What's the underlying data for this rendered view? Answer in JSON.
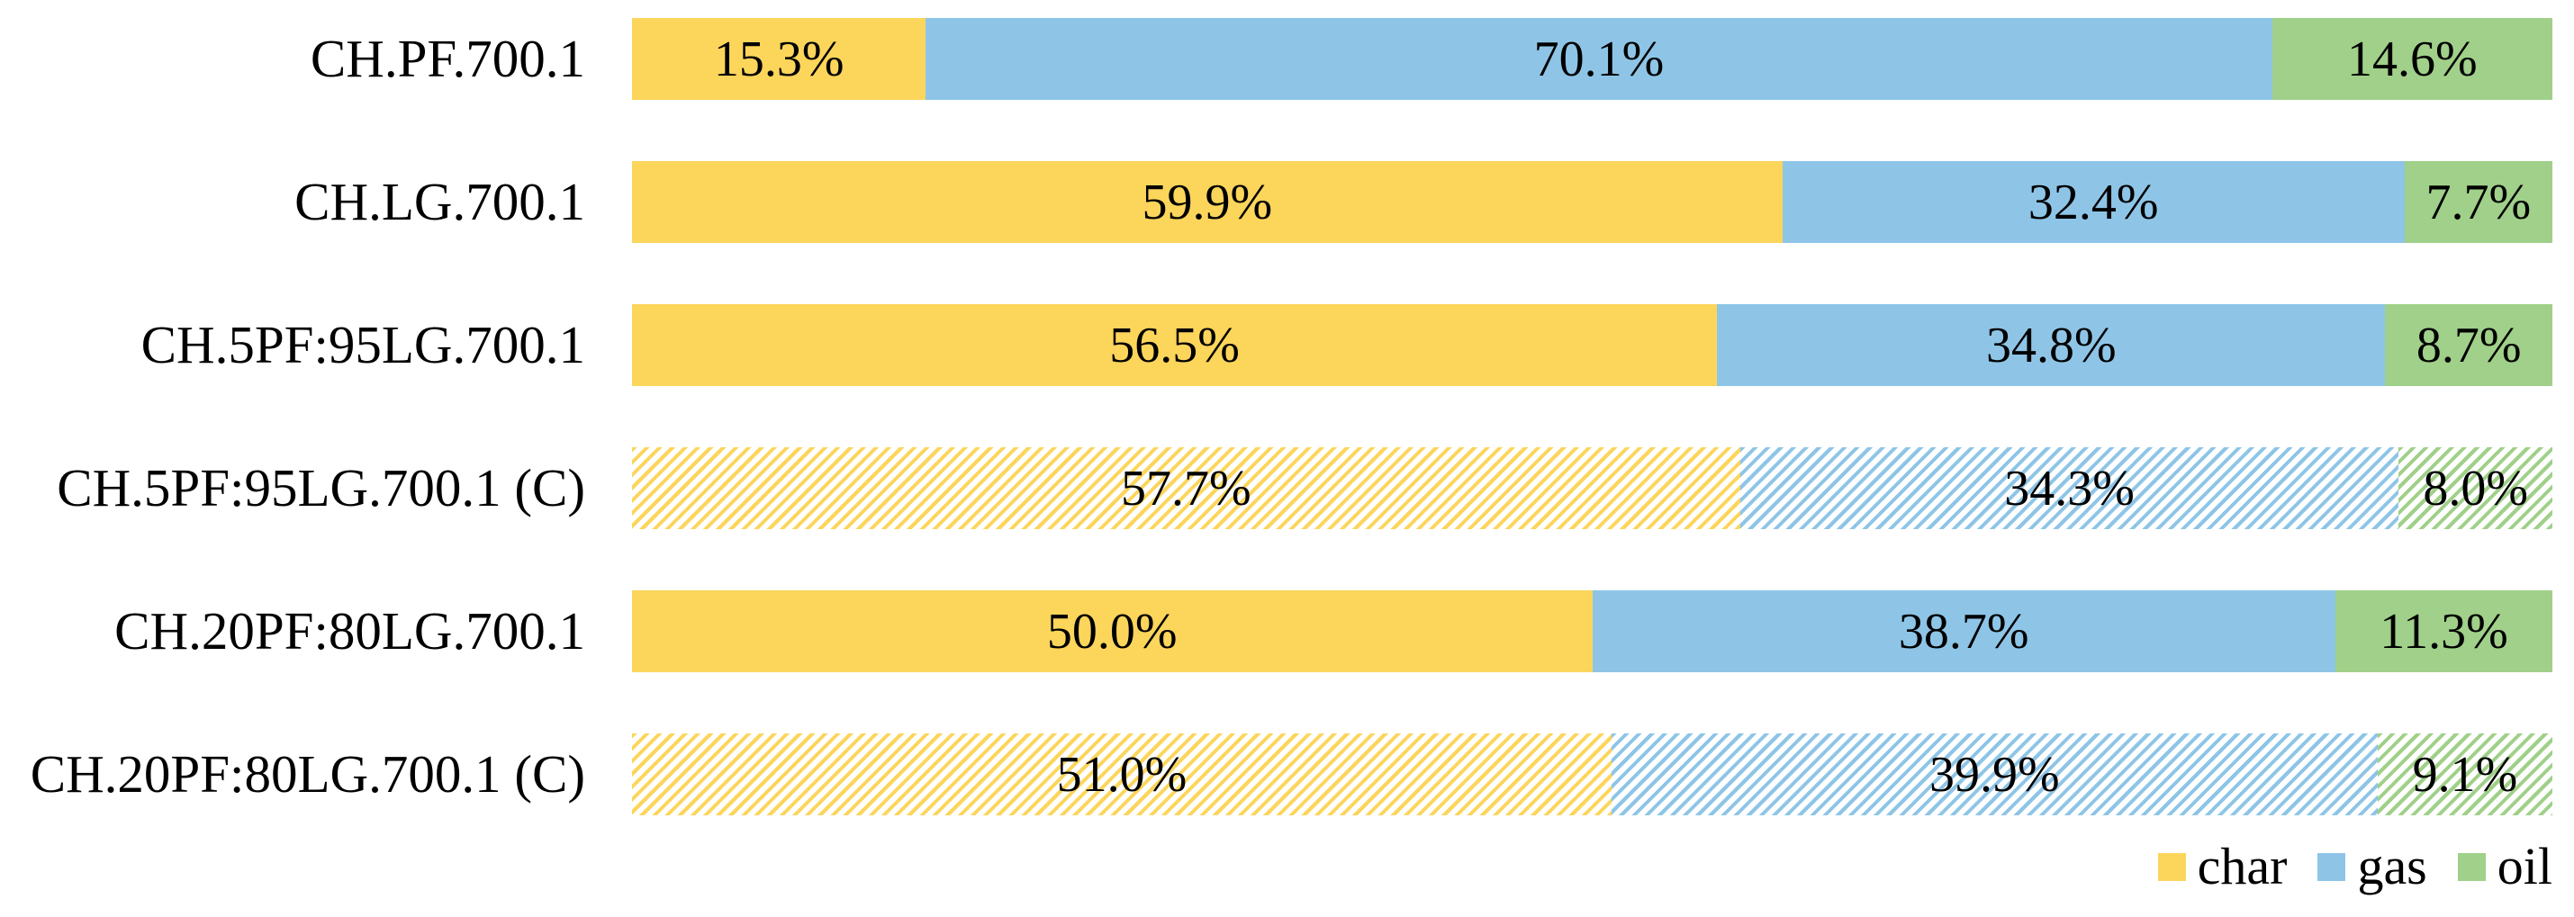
{
  "chart_data": {
    "type": "bar",
    "orientation": "horizontal-stacked",
    "title": "",
    "xlabel": "",
    "ylabel": "",
    "xlim": [
      0,
      100
    ],
    "grid": false,
    "value_label_format": "{value}%",
    "categories": [
      "CH.PF.700.1",
      "CH.LG.700.1",
      "CH.5PF:95LG.700.1",
      "CH.5PF:95LG.700.1 (C)",
      "CH.20PF:80LG.700.1",
      "CH.20PF:80LG.700.1 (C)"
    ],
    "hatched_indices": [
      3,
      5
    ],
    "series": [
      {
        "name": "char",
        "color": "#FCD55B",
        "values": [
          15.3,
          59.9,
          56.5,
          57.7,
          50.0,
          51.0
        ]
      },
      {
        "name": "gas",
        "color": "#8EC5E7",
        "values": [
          70.1,
          32.4,
          34.8,
          34.3,
          38.7,
          39.9
        ]
      },
      {
        "name": "oil",
        "color": "#A0D089",
        "values": [
          14.6,
          7.7,
          8.7,
          8.0,
          11.3,
          9.1
        ]
      }
    ],
    "legend": {
      "position": "bottom-right",
      "entries": [
        "char",
        "gas",
        "oil"
      ]
    }
  },
  "legend": {
    "items": [
      {
        "label": "char",
        "color": "#FCD55B"
      },
      {
        "label": "gas",
        "color": "#8EC5E7"
      },
      {
        "label": "oil",
        "color": "#A0D089"
      }
    ]
  }
}
